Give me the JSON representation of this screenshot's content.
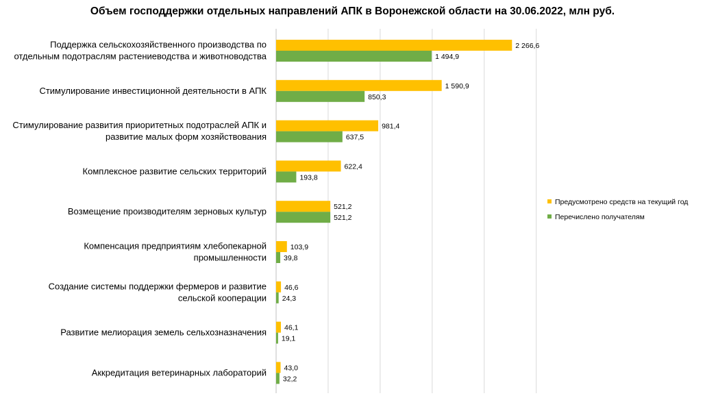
{
  "chart_data": {
    "type": "bar",
    "orientation": "horizontal",
    "title": "Объем господдержки отдельных направлений АПК в Воронежской области на 30.06.2022, млн руб.",
    "categories": [
      [
        "Поддержка сельскохозяйственного производства по",
        "отдельным подотраслям растениеводства и животноводства"
      ],
      [
        "Стимулирование инвестиционной деятельности в АПК"
      ],
      [
        "Стимулирование развития приоритетных подотраслей АПК и",
        "развитие малых форм хозяйствования"
      ],
      [
        "Комплексное развитие сельских территорий"
      ],
      [
        "Возмещение производителям зерновых культур"
      ],
      [
        "Компенсация предприятиям хлебопекарной",
        "промышленности"
      ],
      [
        "Создание системы поддержки фермеров и развитие",
        "сельской кооперации"
      ],
      [
        "Развитие мелиорация земель сельхозназначения"
      ],
      [
        "Аккредитация ветеринарных лабораторий"
      ]
    ],
    "series": [
      {
        "name": "Предусмотрено средств на текущий год",
        "color": "#ffc000",
        "values": [
          2266.6,
          1590.9,
          981.4,
          622.4,
          521.2,
          103.9,
          46.6,
          46.1,
          43.0
        ],
        "labels": [
          "2 266,6",
          "1 590,9",
          "981,4",
          "622,4",
          "521,2",
          "103,9",
          "46,6",
          "46,1",
          "43,0"
        ]
      },
      {
        "name": "Перечислено  получателям",
        "color": "#70ad47",
        "values": [
          1494.9,
          850.3,
          637.5,
          193.8,
          521.2,
          39.8,
          24.3,
          19.1,
          32.2
        ],
        "labels": [
          "1 494,9",
          "850,3",
          "637,5",
          "193,8",
          "521,2",
          "39,8",
          "24,3",
          "19,1",
          "32,2"
        ]
      }
    ],
    "xlim": [
      0,
      2500
    ],
    "grid_step": 500,
    "grid": true,
    "legend_position": "right"
  }
}
